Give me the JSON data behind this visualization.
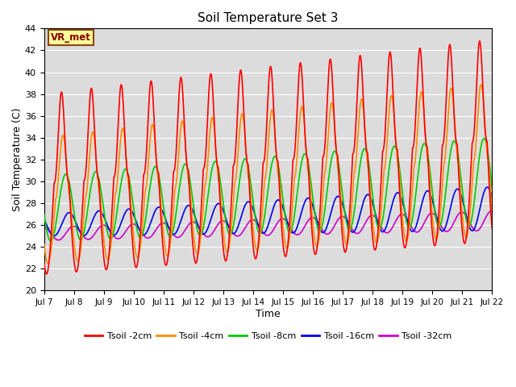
{
  "title": "Soil Temperature Set 3",
  "xlabel": "Time",
  "ylabel": "Soil Temperature (C)",
  "ylim": [
    20,
    44
  ],
  "yticks": [
    20,
    22,
    24,
    26,
    28,
    30,
    32,
    34,
    36,
    38,
    40,
    42,
    44
  ],
  "x_labels": [
    "Jul 7",
    "Jul 8",
    "Jul 9",
    "Jul 10",
    "Jul 11",
    "Jul 12",
    "Jul 13",
    "Jul 14",
    "Jul 15",
    "Jul 16",
    "Jul 17",
    "Jul 18",
    "Jul 19",
    "Jul 20",
    "Jul 21",
    "Jul 22"
  ],
  "n_days": 15,
  "colors": {
    "Tsoil -2cm": "#ff0000",
    "Tsoil -4cm": "#ff8c00",
    "Tsoil -8cm": "#00cc00",
    "Tsoil -16cm": "#0000ee",
    "Tsoil -32cm": "#cc00cc"
  },
  "background_color": "#dcdcdc",
  "annotation_text": "VR_met",
  "annotation_bg": "#ffff99",
  "annotation_border": "#8b4513",
  "legend_labels": [
    "Tsoil -2cm",
    "Tsoil -4cm",
    "Tsoil -8cm",
    "Tsoil -16cm",
    "Tsoil -32cm"
  ]
}
